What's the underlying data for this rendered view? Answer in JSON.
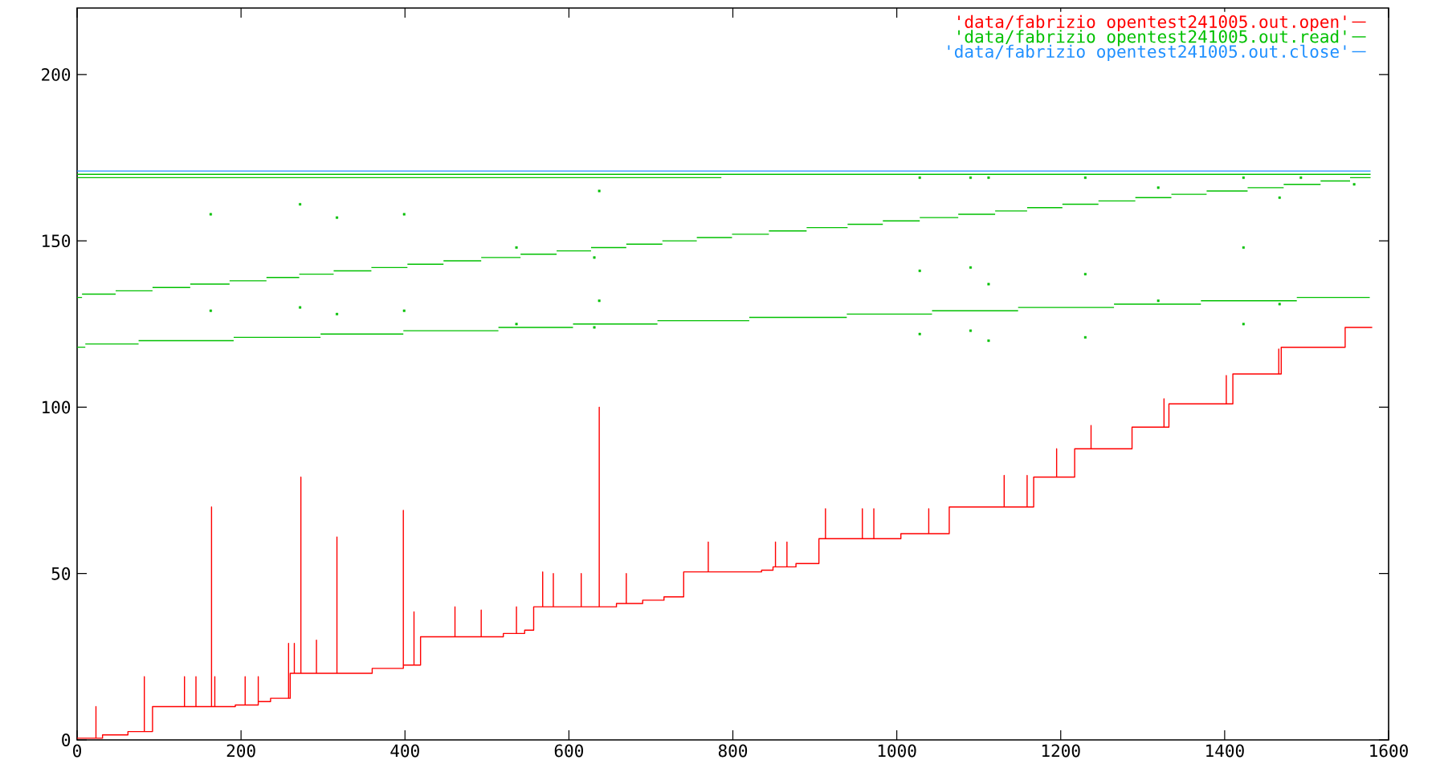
{
  "chart_data": {
    "type": "line",
    "xlim": [
      0,
      1600
    ],
    "ylim": [
      0,
      220
    ],
    "xticks": [
      0,
      200,
      400,
      600,
      800,
      1000,
      1200,
      1400,
      1600
    ],
    "yticks": [
      0,
      50,
      100,
      150,
      200
    ],
    "legend": "top right",
    "series": [
      {
        "name": "'data/fabrizio opentest241005.out.open'",
        "color": "#ff0000",
        "x": [
          0,
          23,
          23,
          23,
          31,
          31,
          62,
          62,
          82,
          82,
          82,
          92,
          92,
          131,
          131,
          131,
          145,
          145,
          145,
          164,
          164,
          164,
          168,
          168,
          168,
          193,
          193,
          205,
          205,
          205,
          221,
          221,
          221,
          221,
          236,
          236,
          258,
          258,
          258,
          260,
          260,
          265,
          265,
          265,
          273,
          273,
          273,
          292,
          292,
          292,
          317,
          317,
          317,
          360,
          360,
          398,
          398,
          398,
          411,
          411,
          411,
          419,
          419,
          461,
          461,
          461,
          493,
          493,
          493,
          520,
          520,
          536,
          536,
          536,
          546,
          546,
          557,
          557,
          568,
          568,
          568,
          581,
          581,
          581,
          615,
          615,
          615,
          637,
          637,
          637,
          658,
          658,
          670,
          670,
          670,
          690,
          690,
          716,
          716,
          740,
          740,
          770,
          770,
          770,
          835,
          835,
          849,
          849,
          852,
          852,
          852,
          866,
          866,
          866,
          877,
          877,
          905,
          905,
          913,
          913,
          913,
          958,
          958,
          958,
          972,
          972,
          972,
          1005,
          1005,
          1039,
          1039,
          1039,
          1064,
          1064,
          1131,
          1131,
          1131,
          1159,
          1159,
          1159,
          1167,
          1167,
          1195,
          1195,
          1195,
          1217,
          1217,
          1237,
          1237,
          1237,
          1287,
          1287,
          1326,
          1326,
          1326,
          1332,
          1332,
          1402,
          1402,
          1402,
          1410,
          1410,
          1466,
          1466,
          1466,
          1469,
          1469,
          1547,
          1547,
          1580
        ],
        "values": [
          0.5,
          0.5,
          10,
          0.5,
          0.5,
          1.5,
          1.5,
          2.5,
          2.5,
          19,
          2.5,
          2.5,
          10,
          10,
          19,
          10,
          10,
          19,
          10,
          10,
          70,
          10,
          10,
          19,
          10,
          10,
          10.5,
          10.5,
          19,
          10.5,
          10.5,
          11.5,
          19,
          11.5,
          11.5,
          12.5,
          12.5,
          29,
          12.5,
          12.5,
          20,
          20,
          29,
          20,
          20,
          79,
          20,
          20,
          30,
          20,
          20,
          61,
          20,
          20,
          21.5,
          21.5,
          69,
          22.5,
          22.5,
          38.5,
          22.5,
          22.5,
          31,
          31,
          40,
          31,
          31,
          39,
          31,
          31,
          32,
          32,
          40,
          32,
          32,
          33,
          33,
          40,
          40,
          50.5,
          40,
          40,
          50,
          40,
          40,
          50,
          40,
          40,
          100,
          40,
          40,
          41,
          41,
          50,
          41,
          41,
          42,
          42,
          43,
          43,
          50.5,
          50.5,
          59.5,
          50.5,
          50.5,
          51,
          51,
          52,
          52,
          59.5,
          52,
          52,
          59.5,
          52,
          52,
          53,
          53,
          60.5,
          60.5,
          69.5,
          60.5,
          60.5,
          69.5,
          60.5,
          60.5,
          69.5,
          60.5,
          60.5,
          62,
          62,
          69.5,
          62,
          62,
          70,
          70,
          79.5,
          70,
          70,
          79.5,
          70,
          70,
          79,
          79,
          87.5,
          79,
          79,
          87.5,
          87.5,
          94.5,
          87.5,
          87.5,
          94,
          94,
          102.5,
          94,
          94,
          101,
          101,
          109.5,
          101,
          101,
          110,
          110,
          117.5,
          110,
          110,
          118,
          118,
          124,
          124
        ]
      },
      {
        "name": "'data/fabrizio opentest241005.out.read'",
        "color": "#00c000",
        "x": [
          0,
          10,
          null,
          10,
          75,
          null,
          75,
          191,
          null,
          191,
          297,
          null,
          297,
          398,
          null,
          398,
          514,
          null,
          514,
          605,
          null,
          605,
          708,
          null,
          708,
          820,
          null,
          820,
          939,
          null,
          939,
          1043,
          null,
          1043,
          1148,
          null,
          1148,
          1265,
          null,
          1265,
          1371,
          null,
          1371,
          1488,
          null,
          1488,
          1577,
          null,
          0,
          6,
          null,
          6,
          47,
          null,
          47,
          92,
          null,
          92,
          138,
          null,
          138,
          186,
          null,
          186,
          231,
          null,
          231,
          271,
          null,
          271,
          313,
          null,
          313,
          359,
          null,
          359,
          403,
          null,
          403,
          447,
          null,
          447,
          493,
          null,
          493,
          541,
          null,
          541,
          585,
          null,
          585,
          627,
          null,
          627,
          670,
          null,
          670,
          714,
          null,
          714,
          756,
          null,
          756,
          799,
          null,
          799,
          844,
          null,
          844,
          890,
          null,
          890,
          940,
          null,
          940,
          983,
          null,
          983,
          1028,
          null,
          1028,
          1075,
          null,
          1075,
          1120,
          null,
          1120,
          1159,
          null,
          1159,
          1202,
          null,
          1202,
          1246,
          null,
          1246,
          1291,
          null,
          1291,
          1335,
          null,
          1335,
          1378,
          null,
          1378,
          1428,
          null,
          1428,
          1472,
          null,
          1472,
          1517,
          null,
          1517,
          1553,
          null,
          1553,
          1578,
          null,
          0,
          786,
          null,
          0,
          1578
        ],
        "values": [
          118,
          118,
          null,
          119,
          119,
          null,
          120,
          120,
          null,
          121,
          121,
          null,
          122,
          122,
          null,
          123,
          123,
          null,
          124,
          124,
          null,
          125,
          125,
          null,
          126,
          126,
          null,
          127,
          127,
          null,
          128,
          128,
          null,
          129,
          129,
          null,
          130,
          130,
          null,
          131,
          131,
          null,
          132,
          132,
          null,
          133,
          133,
          null,
          133,
          133,
          null,
          134,
          134,
          null,
          135,
          135,
          null,
          136,
          136,
          null,
          137,
          137,
          null,
          138,
          138,
          null,
          139,
          139,
          null,
          140,
          140,
          null,
          141,
          141,
          null,
          142,
          142,
          null,
          143,
          143,
          null,
          144,
          144,
          null,
          145,
          145,
          null,
          146,
          146,
          null,
          147,
          147,
          null,
          148,
          148,
          null,
          149,
          149,
          null,
          150,
          150,
          null,
          151,
          151,
          null,
          152,
          152,
          null,
          153,
          153,
          null,
          154,
          154,
          null,
          155,
          155,
          null,
          156,
          156,
          null,
          157,
          157,
          null,
          158,
          158,
          null,
          159,
          159,
          null,
          160,
          160,
          null,
          161,
          161,
          null,
          162,
          162,
          null,
          163,
          163,
          null,
          164,
          164,
          null,
          165,
          165,
          null,
          166,
          166,
          null,
          167,
          167,
          null,
          168,
          168,
          null,
          169,
          169,
          null,
          169,
          169,
          null,
          170,
          170
        ]
      },
      {
        "color": "#00c000",
        "type": "scatter",
        "marker": "square",
        "x": [
          163,
          272,
          317,
          399,
          637,
          163,
          272,
          317,
          399,
          536,
          631,
          637,
          536,
          631,
          1028,
          1090,
          1112,
          1230,
          1423,
          1493,
          1319,
          1467,
          1558,
          1423,
          1028,
          1090,
          1112,
          1230,
          1319,
          1467,
          1423,
          1028,
          1090,
          1112,
          1230
        ],
        "values": [
          158,
          161,
          157,
          158,
          165,
          129,
          130,
          128,
          129,
          148,
          145,
          132,
          125,
          124,
          169,
          169,
          169,
          169,
          169,
          169,
          166,
          163,
          167,
          148,
          141,
          142,
          137,
          140,
          132,
          131,
          125,
          122,
          123,
          120,
          121
        ]
      },
      {
        "name": "'data/fabrizio opentest241005.out.close'",
        "color": "#2090ff",
        "x": [
          0,
          1578
        ],
        "values": [
          171,
          171
        ]
      }
    ]
  }
}
